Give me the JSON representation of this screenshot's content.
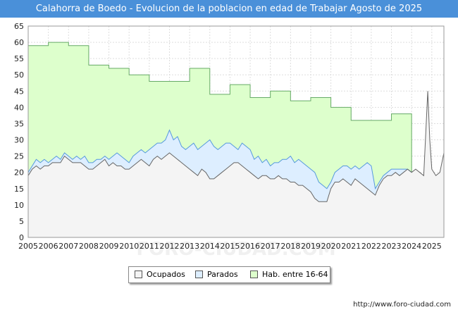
{
  "title": "Calahorra de Boedo - Evolucion de la poblacion en edad de Trabajar Agosto de 2025",
  "source": "http://www.foro-ciudad.com",
  "watermark": "FORO-CIUDAD.COM",
  "colors": {
    "title_bg": "#4a90d9",
    "hab_fill": "#ddffcc",
    "hab_line": "#66aa66",
    "parados_fill": "#ddeeff",
    "parados_line": "#5599dd",
    "ocupados_fill": "#f4f4f4",
    "ocupados_line": "#666666"
  },
  "legend": [
    {
      "key": "ocupados",
      "label": "Ocupados"
    },
    {
      "key": "parados",
      "label": "Parados"
    },
    {
      "key": "hab",
      "label": "Hab. entre 16-64"
    }
  ],
  "chart_data": {
    "type": "area",
    "xlim": [
      2005,
      2025.6
    ],
    "ylim": [
      0,
      65
    ],
    "yticks": [
      0,
      5,
      10,
      15,
      20,
      25,
      30,
      35,
      40,
      45,
      50,
      55,
      60,
      65
    ],
    "xticks": [
      "2005",
      "2006",
      "2007",
      "2008",
      "2009",
      "2010",
      "2011",
      "2012",
      "2013",
      "2014",
      "2015",
      "2016",
      "2017",
      "2018",
      "2019",
      "2020",
      "2021",
      "2022",
      "2023",
      "2024",
      "2025"
    ],
    "grid": true,
    "series": [
      {
        "name": "Hab. entre 16-64",
        "points": [
          [
            2005,
            59
          ],
          [
            2006,
            59
          ],
          [
            2006,
            60
          ],
          [
            2007,
            60
          ],
          [
            2007,
            59
          ],
          [
            2008,
            59
          ],
          [
            2008,
            53
          ],
          [
            2009,
            53
          ],
          [
            2009,
            52
          ],
          [
            2010,
            52
          ],
          [
            2010,
            50
          ],
          [
            2011,
            50
          ],
          [
            2011,
            48
          ],
          [
            2013,
            48
          ],
          [
            2013,
            52
          ],
          [
            2014,
            52
          ],
          [
            2014,
            44
          ],
          [
            2015,
            44
          ],
          [
            2015,
            47
          ],
          [
            2016,
            47
          ],
          [
            2016,
            43
          ],
          [
            2017,
            43
          ],
          [
            2017,
            45
          ],
          [
            2018,
            45
          ],
          [
            2018,
            42
          ],
          [
            2019,
            42
          ],
          [
            2019,
            43
          ],
          [
            2020,
            43
          ],
          [
            2020,
            40
          ],
          [
            2021,
            40
          ],
          [
            2021,
            36
          ],
          [
            2023,
            36
          ],
          [
            2023,
            38
          ],
          [
            2024,
            38
          ],
          [
            2024,
            20
          ]
        ]
      },
      {
        "name": "Parados",
        "points": [
          [
            2005,
            20
          ],
          [
            2005.2,
            22
          ],
          [
            2005.4,
            24
          ],
          [
            2005.6,
            23
          ],
          [
            2005.8,
            24
          ],
          [
            2006,
            23
          ],
          [
            2006.2,
            24
          ],
          [
            2006.4,
            25
          ],
          [
            2006.6,
            24
          ],
          [
            2006.8,
            26
          ],
          [
            2007,
            25
          ],
          [
            2007.2,
            24
          ],
          [
            2007.4,
            25
          ],
          [
            2007.6,
            24
          ],
          [
            2007.8,
            25
          ],
          [
            2008,
            23
          ],
          [
            2008.2,
            23
          ],
          [
            2008.4,
            24
          ],
          [
            2008.6,
            24
          ],
          [
            2008.8,
            25
          ],
          [
            2009,
            24
          ],
          [
            2009.2,
            25
          ],
          [
            2009.4,
            26
          ],
          [
            2009.6,
            25
          ],
          [
            2009.8,
            24
          ],
          [
            2010,
            23
          ],
          [
            2010.2,
            25
          ],
          [
            2010.4,
            26
          ],
          [
            2010.6,
            27
          ],
          [
            2010.8,
            26
          ],
          [
            2011,
            27
          ],
          [
            2011.2,
            28
          ],
          [
            2011.4,
            29
          ],
          [
            2011.6,
            29
          ],
          [
            2011.8,
            30
          ],
          [
            2012,
            33
          ],
          [
            2012.2,
            30
          ],
          [
            2012.4,
            31
          ],
          [
            2012.6,
            28
          ],
          [
            2012.8,
            27
          ],
          [
            2013,
            28
          ],
          [
            2013.2,
            29
          ],
          [
            2013.4,
            27
          ],
          [
            2013.6,
            28
          ],
          [
            2013.8,
            29
          ],
          [
            2014,
            30
          ],
          [
            2014.2,
            28
          ],
          [
            2014.4,
            27
          ],
          [
            2014.6,
            28
          ],
          [
            2014.8,
            29
          ],
          [
            2015,
            29
          ],
          [
            2015.2,
            28
          ],
          [
            2015.4,
            27
          ],
          [
            2015.6,
            29
          ],
          [
            2015.8,
            28
          ],
          [
            2016,
            27
          ],
          [
            2016.2,
            24
          ],
          [
            2016.4,
            25
          ],
          [
            2016.6,
            23
          ],
          [
            2016.8,
            24
          ],
          [
            2017,
            22
          ],
          [
            2017.2,
            23
          ],
          [
            2017.4,
            23
          ],
          [
            2017.6,
            24
          ],
          [
            2017.8,
            24
          ],
          [
            2018,
            25
          ],
          [
            2018.2,
            23
          ],
          [
            2018.4,
            24
          ],
          [
            2018.6,
            23
          ],
          [
            2018.8,
            22
          ],
          [
            2019,
            21
          ],
          [
            2019.2,
            20
          ],
          [
            2019.4,
            17
          ],
          [
            2019.6,
            16
          ],
          [
            2019.8,
            15
          ],
          [
            2020,
            17
          ],
          [
            2020.2,
            20
          ],
          [
            2020.4,
            21
          ],
          [
            2020.6,
            22
          ],
          [
            2020.8,
            22
          ],
          [
            2021,
            21
          ],
          [
            2021.2,
            22
          ],
          [
            2021.4,
            21
          ],
          [
            2021.6,
            22
          ],
          [
            2021.8,
            23
          ],
          [
            2022,
            22
          ],
          [
            2022.2,
            15
          ],
          [
            2022.4,
            17
          ],
          [
            2022.6,
            19
          ],
          [
            2022.8,
            20
          ],
          [
            2023,
            21
          ],
          [
            2023.4,
            21
          ],
          [
            2023.8,
            21
          ],
          [
            2024,
            20
          ]
        ]
      },
      {
        "name": "Ocupados",
        "points": [
          [
            2005,
            19
          ],
          [
            2005.2,
            21
          ],
          [
            2005.4,
            22
          ],
          [
            2005.6,
            21
          ],
          [
            2005.8,
            22
          ],
          [
            2006,
            22
          ],
          [
            2006.2,
            23
          ],
          [
            2006.4,
            23
          ],
          [
            2006.6,
            23
          ],
          [
            2006.8,
            25
          ],
          [
            2007,
            24
          ],
          [
            2007.2,
            23
          ],
          [
            2007.4,
            23
          ],
          [
            2007.6,
            23
          ],
          [
            2007.8,
            22
          ],
          [
            2008,
            21
          ],
          [
            2008.2,
            21
          ],
          [
            2008.4,
            22
          ],
          [
            2008.6,
            23
          ],
          [
            2008.8,
            24
          ],
          [
            2009,
            22
          ],
          [
            2009.2,
            23
          ],
          [
            2009.4,
            22
          ],
          [
            2009.6,
            22
          ],
          [
            2009.8,
            21
          ],
          [
            2010,
            21
          ],
          [
            2010.2,
            22
          ],
          [
            2010.4,
            23
          ],
          [
            2010.6,
            24
          ],
          [
            2010.8,
            23
          ],
          [
            2011,
            22
          ],
          [
            2011.2,
            24
          ],
          [
            2011.4,
            25
          ],
          [
            2011.6,
            24
          ],
          [
            2011.8,
            25
          ],
          [
            2012,
            26
          ],
          [
            2012.2,
            25
          ],
          [
            2012.4,
            24
          ],
          [
            2012.6,
            23
          ],
          [
            2012.8,
            22
          ],
          [
            2013,
            21
          ],
          [
            2013.2,
            20
          ],
          [
            2013.4,
            19
          ],
          [
            2013.6,
            21
          ],
          [
            2013.8,
            20
          ],
          [
            2014,
            18
          ],
          [
            2014.2,
            18
          ],
          [
            2014.4,
            19
          ],
          [
            2014.6,
            20
          ],
          [
            2014.8,
            21
          ],
          [
            2015,
            22
          ],
          [
            2015.2,
            23
          ],
          [
            2015.4,
            23
          ],
          [
            2015.6,
            22
          ],
          [
            2015.8,
            21
          ],
          [
            2016,
            20
          ],
          [
            2016.2,
            19
          ],
          [
            2016.4,
            18
          ],
          [
            2016.6,
            19
          ],
          [
            2016.8,
            19
          ],
          [
            2017,
            18
          ],
          [
            2017.2,
            18
          ],
          [
            2017.4,
            19
          ],
          [
            2017.6,
            18
          ],
          [
            2017.8,
            18
          ],
          [
            2018,
            17
          ],
          [
            2018.2,
            17
          ],
          [
            2018.4,
            16
          ],
          [
            2018.6,
            16
          ],
          [
            2018.8,
            15
          ],
          [
            2019,
            14
          ],
          [
            2019.2,
            12
          ],
          [
            2019.4,
            11
          ],
          [
            2019.6,
            11
          ],
          [
            2019.8,
            11
          ],
          [
            2020,
            15
          ],
          [
            2020.2,
            17
          ],
          [
            2020.4,
            17
          ],
          [
            2020.6,
            18
          ],
          [
            2020.8,
            17
          ],
          [
            2021,
            16
          ],
          [
            2021.2,
            18
          ],
          [
            2021.4,
            17
          ],
          [
            2021.6,
            16
          ],
          [
            2021.8,
            15
          ],
          [
            2022,
            14
          ],
          [
            2022.2,
            13
          ],
          [
            2022.4,
            16
          ],
          [
            2022.6,
            18
          ],
          [
            2022.8,
            19
          ],
          [
            2023,
            19
          ],
          [
            2023.2,
            20
          ],
          [
            2023.4,
            19
          ],
          [
            2023.6,
            20
          ],
          [
            2023.8,
            21
          ],
          [
            2024,
            20
          ],
          [
            2024.2,
            21
          ],
          [
            2024.4,
            20
          ],
          [
            2024.6,
            19
          ],
          [
            2024.8,
            45
          ],
          [
            2024.9,
            30
          ],
          [
            2025,
            21
          ],
          [
            2025.2,
            19
          ],
          [
            2025.4,
            20
          ],
          [
            2025.6,
            26
          ]
        ]
      }
    ]
  }
}
